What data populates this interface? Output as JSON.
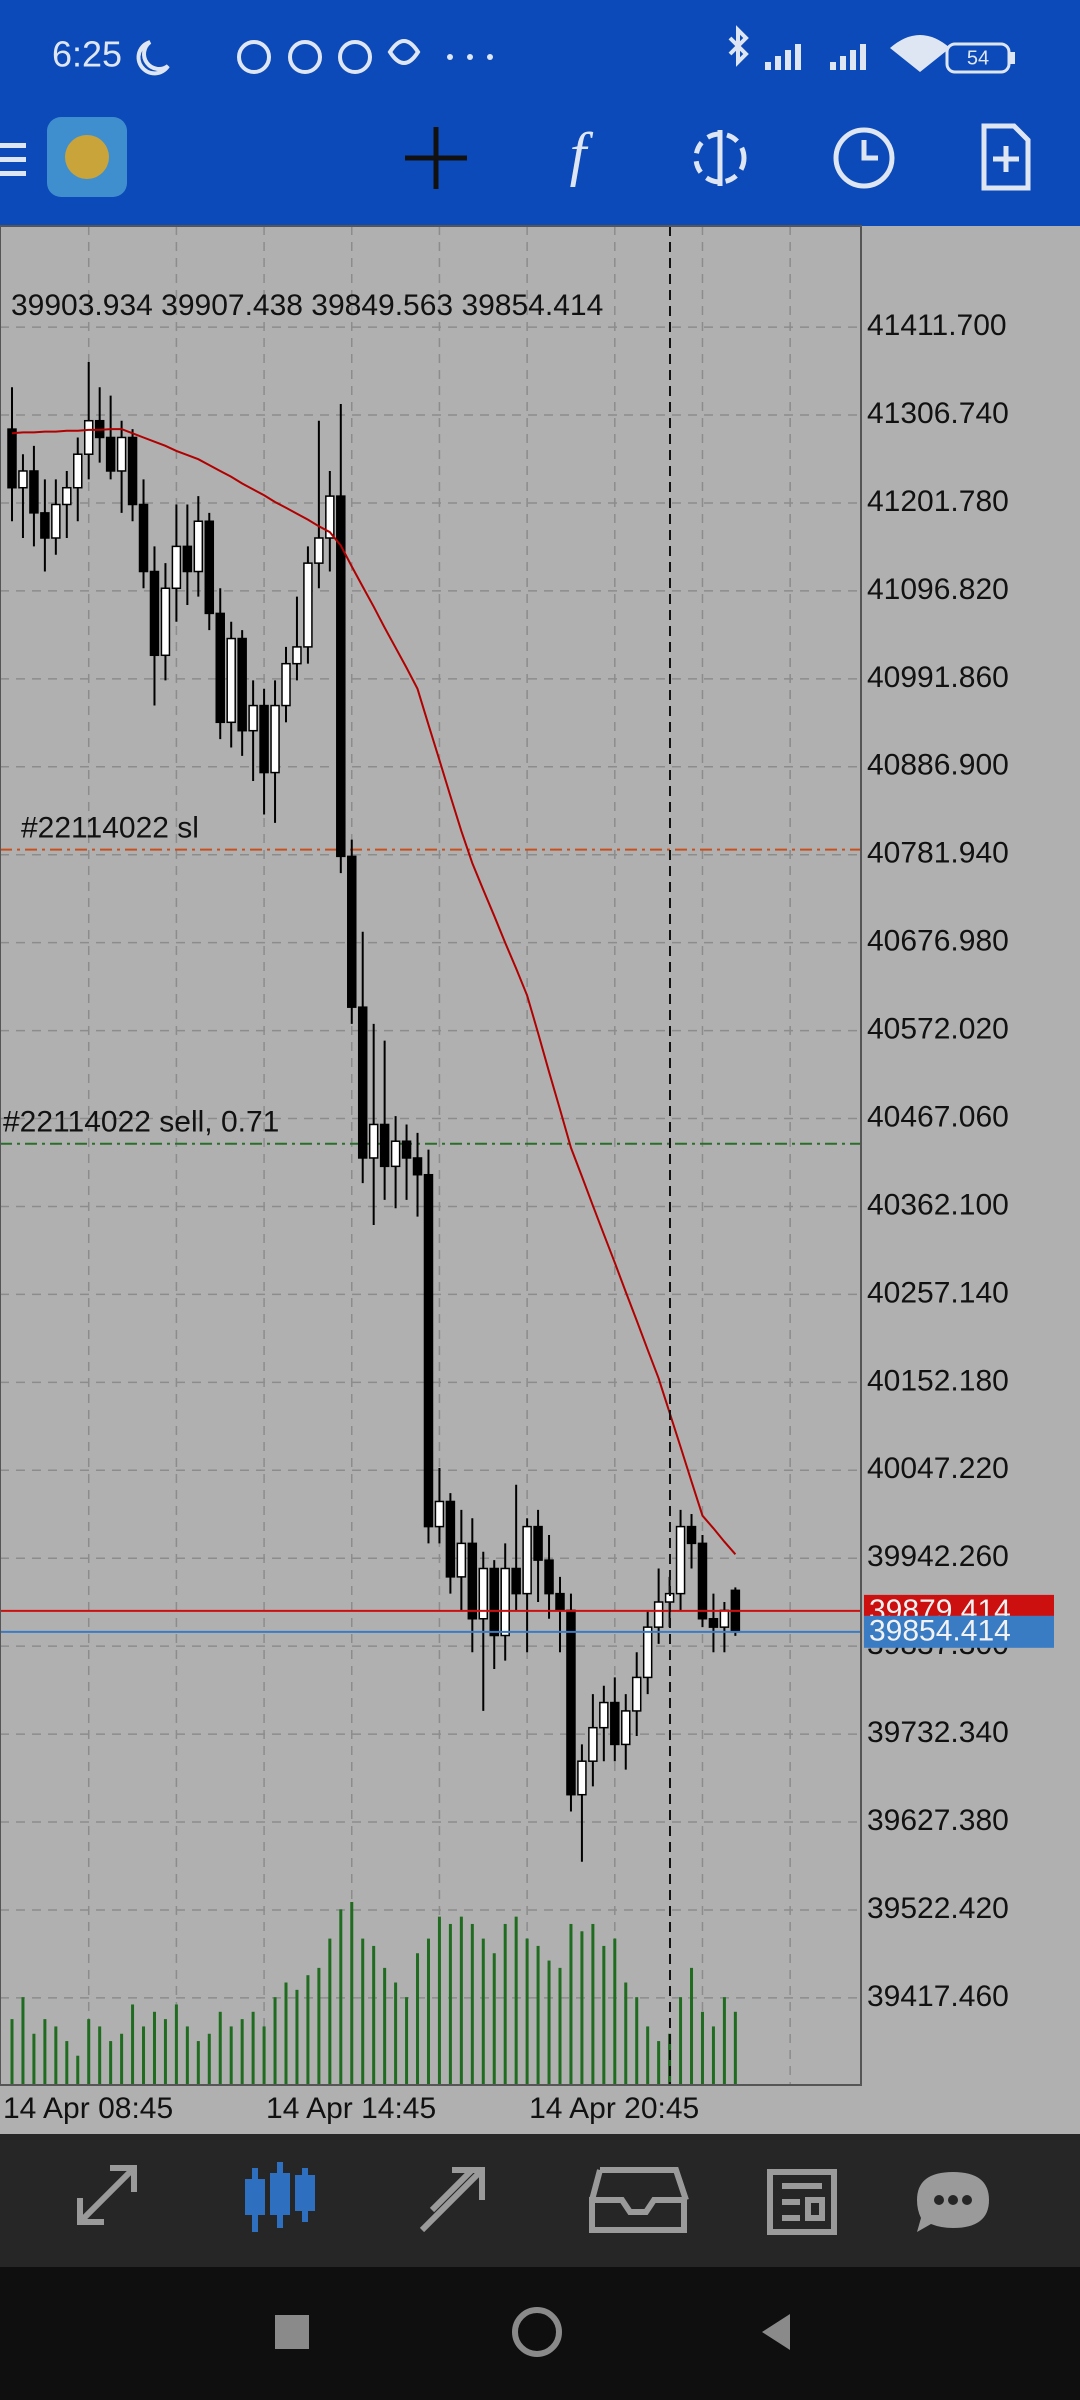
{
  "status_bar": {
    "time": "6:25",
    "battery": "54"
  },
  "chart_data": {
    "type": "candlestick",
    "info": "39903.934 39907.438 39849.563 39854.414",
    "categories": [
      "14 Apr 08:45",
      null,
      null,
      null,
      null,
      null,
      null,
      null,
      null,
      null,
      null,
      null,
      null,
      null,
      null,
      null,
      null,
      null,
      null,
      null,
      null,
      null,
      null,
      null,
      "14 Apr 14:45",
      null,
      null,
      null,
      null,
      null,
      null,
      null,
      null,
      null,
      null,
      null,
      null,
      null,
      null,
      null,
      null,
      null,
      null,
      null,
      null,
      null,
      null,
      null,
      "14 Apr 20:45",
      null,
      null,
      null,
      null,
      null,
      null,
      null,
      null,
      null,
      null,
      null,
      null,
      null,
      null,
      null,
      null,
      null,
      null
    ],
    "open": [
      41290,
      41220,
      41240,
      41190,
      41160,
      41200,
      41220,
      41260,
      41300,
      41280,
      41240,
      41280,
      41200,
      41120,
      41020,
      41100,
      41150,
      41120,
      41180,
      41070,
      40940,
      41040,
      40930,
      40960,
      40880,
      40960,
      41010,
      41030,
      41130,
      41160,
      41210,
      40780,
      40600,
      40420,
      40460,
      40410,
      40440,
      40420,
      40400,
      39980,
      40010,
      39920,
      39960,
      39870,
      39930,
      39850,
      39930,
      39900,
      39980,
      39940,
      39900,
      39880,
      39660,
      39700,
      39740,
      39770,
      39720,
      39760,
      39800,
      39860,
      39890,
      39900,
      39980,
      39960,
      39870,
      39860,
      39903.934
    ],
    "high": [
      41340,
      41260,
      41270,
      41230,
      41230,
      41240,
      41280,
      41370,
      41340,
      41330,
      41300,
      41290,
      41230,
      41150,
      41130,
      41200,
      41200,
      41210,
      41190,
      41100,
      41060,
      41050,
      40990,
      40980,
      40990,
      41030,
      41090,
      41150,
      41300,
      41240,
      41320,
      40800,
      40690,
      40580,
      40560,
      40470,
      40460,
      40450,
      40430,
      40050,
      40020,
      40000,
      39990,
      39950,
      39940,
      39960,
      40030,
      39990,
      40000,
      39970,
      39920,
      39900,
      39720,
      39780,
      39790,
      39800,
      39780,
      39830,
      39880,
      39930,
      39920,
      40000,
      39995,
      39970,
      39900,
      39890,
      39907.438
    ],
    "low": [
      41180,
      41160,
      41150,
      41120,
      41140,
      41160,
      41180,
      41230,
      41250,
      41230,
      41190,
      41180,
      41100,
      40960,
      40990,
      41060,
      41080,
      41090,
      41050,
      40920,
      40910,
      40900,
      40870,
      40830,
      40820,
      40940,
      40990,
      41010,
      41100,
      41120,
      40760,
      40580,
      40390,
      40340,
      40370,
      40360,
      40370,
      40350,
      39960,
      39960,
      39900,
      39880,
      39830,
      39760,
      39810,
      39820,
      39880,
      39830,
      39890,
      39870,
      39830,
      39640,
      39580,
      39670,
      39700,
      39700,
      39690,
      39730,
      39780,
      39840,
      39860,
      39880,
      39930,
      39860,
      39830,
      39830,
      39849.563
    ],
    "close": [
      41220,
      41240,
      41190,
      41160,
      41200,
      41220,
      41260,
      41300,
      41280,
      41240,
      41280,
      41200,
      41120,
      41020,
      41100,
      41150,
      41120,
      41180,
      41070,
      40940,
      41040,
      40930,
      40960,
      40880,
      40960,
      41010,
      41030,
      41130,
      41160,
      41210,
      40780,
      40600,
      40420,
      40460,
      40410,
      40440,
      40420,
      40400,
      39980,
      40010,
      39920,
      39960,
      39870,
      39930,
      39850,
      39930,
      39900,
      39980,
      39940,
      39900,
      39880,
      39660,
      39700,
      39740,
      39770,
      39720,
      39760,
      39800,
      39860,
      39890,
      39900,
      39980,
      39960,
      39870,
      39860,
      39880,
      39854.414
    ],
    "volume": [
      45,
      60,
      35,
      45,
      40,
      30,
      20,
      45,
      40,
      30,
      35,
      55,
      40,
      50,
      45,
      55,
      40,
      30,
      35,
      50,
      40,
      45,
      50,
      40,
      60,
      70,
      65,
      75,
      80,
      100,
      120,
      125,
      100,
      95,
      80,
      70,
      60,
      90,
      100,
      115,
      110,
      115,
      110,
      100,
      90,
      110,
      115,
      100,
      95,
      85,
      80,
      110,
      105,
      110,
      95,
      100,
      70,
      60,
      40,
      30,
      35,
      60,
      80,
      50,
      40,
      60,
      50
    ],
    "up_color": "#ffffff",
    "down_color": "#000000",
    "volume_color": "#1f6b1f",
    "ma": {
      "color": "#b00000",
      "values": [
        41285,
        41286,
        41286,
        41287,
        41287,
        41288,
        41288,
        41289,
        41289,
        41290,
        41290,
        41285,
        41280,
        41275,
        41270,
        41264,
        41259,
        41254,
        41247,
        41240,
        41233,
        41225,
        41218,
        41211,
        41203,
        41196,
        41189,
        41182,
        41174,
        41167,
        41151,
        41126,
        41102,
        41078,
        41053,
        41029,
        41005,
        40980,
        40937,
        40895,
        40852,
        40810,
        40772,
        40740,
        40709,
        40677,
        40646,
        40614,
        40569,
        40523,
        40478,
        40432,
        40398,
        40363,
        40329,
        40295,
        40260,
        40226,
        40191,
        40157,
        40116,
        40075,
        40034,
        39993,
        39978,
        39962,
        39947
      ]
    },
    "ylim": [
      39313.5,
      41532.4
    ],
    "yticks": [
      {
        "value": 41411.7,
        "label": "41411.700"
      },
      {
        "value": 41306.74,
        "label": "41306.740"
      },
      {
        "value": 41201.78,
        "label": "41201.780"
      },
      {
        "value": 41096.82,
        "label": "41096.820"
      },
      {
        "value": 40991.86,
        "label": "40991.860"
      },
      {
        "value": 40886.9,
        "label": "40886.900"
      },
      {
        "value": 40781.94,
        "label": "40781.940"
      },
      {
        "value": 40676.98,
        "label": "40676.980"
      },
      {
        "value": 40572.02,
        "label": "40572.020"
      },
      {
        "value": 40467.06,
        "label": "40467.060"
      },
      {
        "value": 40362.1,
        "label": "40362.100"
      },
      {
        "value": 40257.14,
        "label": "40257.140"
      },
      {
        "value": 40152.18,
        "label": "40152.180"
      },
      {
        "value": 40047.22,
        "label": "40047.220"
      },
      {
        "value": 39942.26,
        "label": "39942.260"
      },
      {
        "value": 39837.3,
        "label": "39837.300"
      },
      {
        "value": 39732.34,
        "label": "39732.340"
      },
      {
        "value": 39627.38,
        "label": "39627.380"
      },
      {
        "value": 39522.42,
        "label": "39522.420"
      },
      {
        "value": 39417.46,
        "label": "39417.460"
      }
    ],
    "grid": true,
    "levels": [
      {
        "label": "#22114022 sl",
        "value": 40788,
        "color": "#c8501e"
      },
      {
        "label": "#22114022 sell, 0.71",
        "value": 40437,
        "color": "#2a6e2a"
      }
    ],
    "ask": {
      "value": 39879.414,
      "color": "#cc1010"
    },
    "bid": {
      "value": 39854.414,
      "color": "#3a7cc4"
    }
  }
}
